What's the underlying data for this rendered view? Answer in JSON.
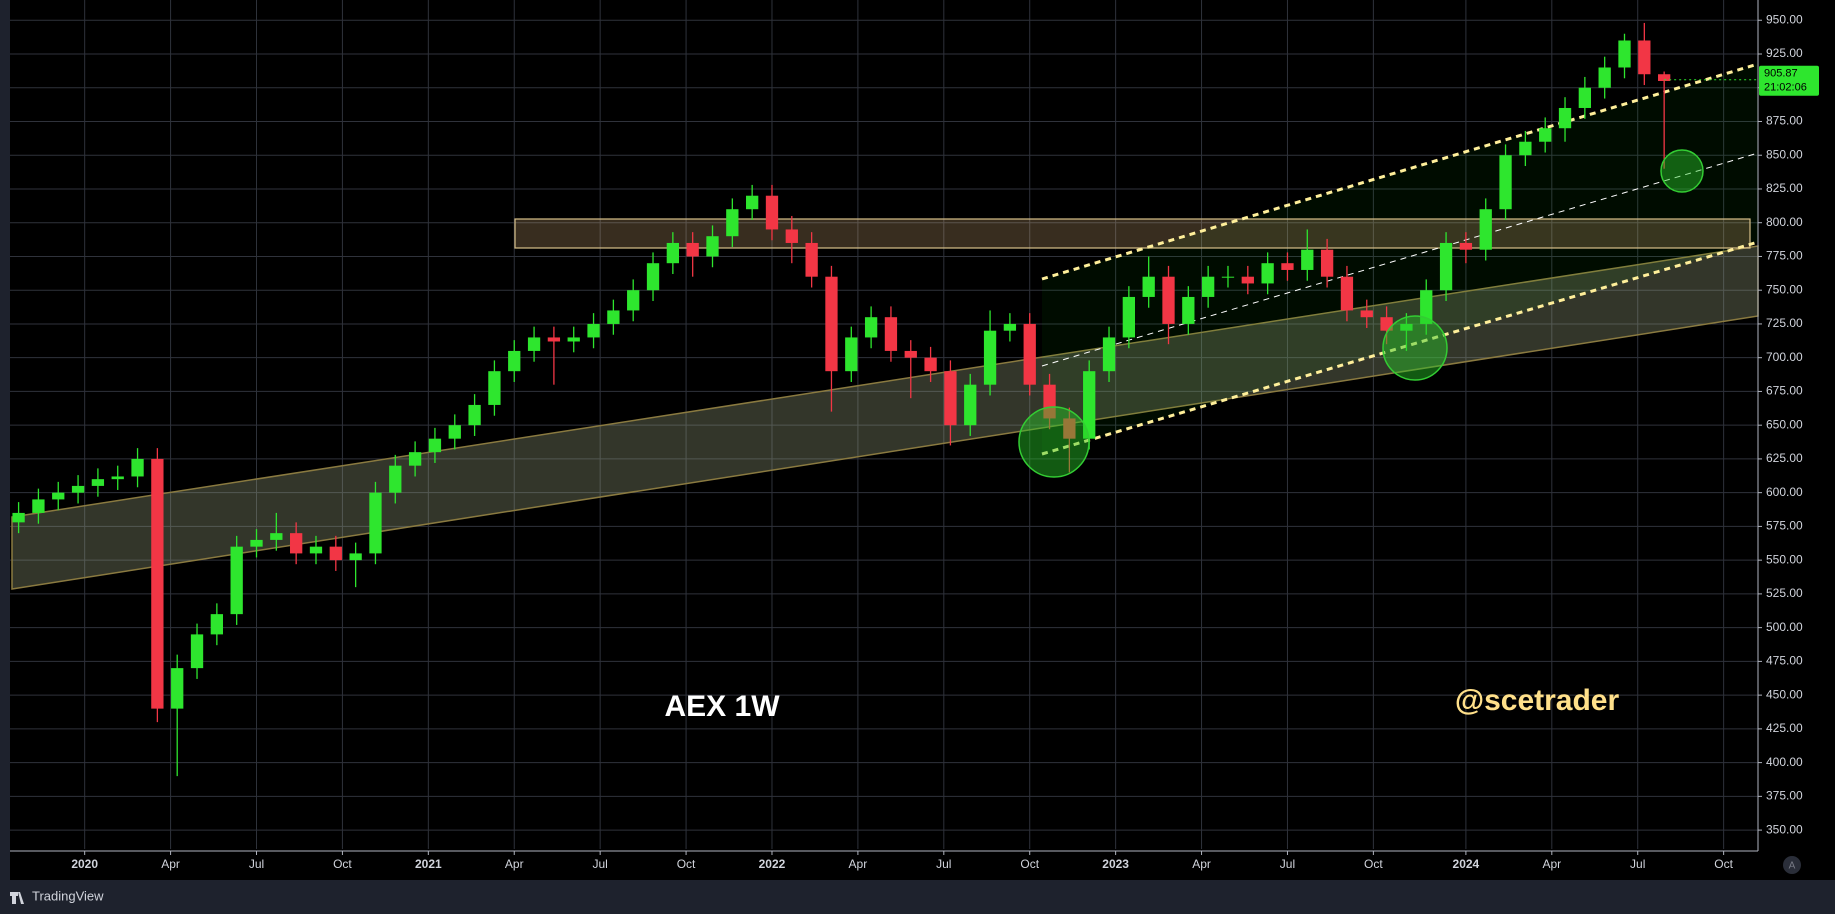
{
  "chart_data": {
    "type": "candlestick",
    "title": "AEX 1W",
    "watermark": "@scetrader",
    "x": [
      -10,
      -7,
      -4,
      -1,
      2,
      5,
      8,
      11,
      14,
      17,
      20,
      23,
      26,
      29,
      32,
      35,
      38,
      41,
      44,
      47,
      50,
      53,
      56,
      59,
      62,
      65,
      68,
      71,
      74,
      77,
      80,
      83,
      86,
      89,
      92,
      95,
      98,
      101,
      104,
      107,
      110,
      113,
      116,
      119,
      122,
      125,
      128,
      131,
      134,
      137,
      140,
      143,
      146,
      149,
      152,
      155,
      158,
      161,
      164,
      167,
      170,
      173,
      176,
      179,
      182,
      185,
      188,
      191,
      194,
      197,
      200,
      203,
      206,
      209,
      212,
      215,
      218,
      221,
      224,
      227,
      230,
      233,
      236,
      239
    ],
    "open": [
      578,
      585,
      595,
      600,
      605,
      610,
      612,
      625,
      440,
      470,
      495,
      510,
      560,
      565,
      570,
      555,
      560,
      550,
      555,
      600,
      620,
      630,
      640,
      650,
      665,
      690,
      705,
      715,
      712,
      715,
      725,
      735,
      750,
      770,
      785,
      775,
      790,
      810,
      820,
      795,
      785,
      760,
      690,
      715,
      730,
      705,
      700,
      690,
      650,
      680,
      720,
      725,
      680,
      655,
      640,
      690,
      715,
      745,
      760,
      725,
      745,
      760,
      760,
      755,
      770,
      765,
      780,
      760,
      735,
      730,
      720,
      725,
      750,
      785,
      780,
      810,
      850,
      860,
      870,
      885,
      900,
      915,
      935,
      910
    ],
    "high": [
      593,
      603,
      608,
      613,
      618,
      620,
      633,
      633,
      480,
      503,
      518,
      568,
      573,
      585,
      578,
      568,
      568,
      563,
      608,
      628,
      638,
      648,
      658,
      673,
      698,
      713,
      723,
      723,
      723,
      733,
      743,
      758,
      778,
      793,
      793,
      798,
      818,
      828,
      828,
      805,
      793,
      768,
      723,
      738,
      738,
      713,
      708,
      698,
      688,
      735,
      733,
      733,
      688,
      663,
      698,
      723,
      753,
      775,
      768,
      753,
      768,
      768,
      768,
      778,
      778,
      795,
      788,
      768,
      743,
      738,
      733,
      758,
      793,
      793,
      818,
      858,
      868,
      878,
      893,
      908,
      923,
      940,
      948,
      912
    ],
    "low": [
      570,
      577,
      587,
      592,
      597,
      602,
      604,
      430,
      390,
      462,
      487,
      502,
      552,
      557,
      547,
      547,
      542,
      530,
      547,
      592,
      612,
      622,
      632,
      642,
      657,
      682,
      697,
      680,
      704,
      707,
      717,
      727,
      742,
      762,
      760,
      767,
      782,
      802,
      787,
      770,
      752,
      660,
      682,
      707,
      697,
      670,
      682,
      635,
      642,
      672,
      712,
      672,
      647,
      615,
      632,
      682,
      707,
      737,
      710,
      717,
      737,
      752,
      747,
      747,
      757,
      757,
      752,
      727,
      722,
      710,
      705,
      717,
      742,
      770,
      772,
      802,
      842,
      852,
      860,
      877,
      892,
      907,
      902,
      840
    ],
    "close": [
      585,
      595,
      600,
      605,
      610,
      612,
      625,
      440,
      470,
      495,
      510,
      560,
      565,
      570,
      555,
      560,
      550,
      555,
      600,
      620,
      630,
      640,
      650,
      665,
      690,
      705,
      715,
      712,
      715,
      725,
      735,
      750,
      770,
      785,
      775,
      790,
      810,
      820,
      795,
      785,
      760,
      690,
      715,
      730,
      705,
      700,
      690,
      650,
      680,
      720,
      725,
      680,
      655,
      640,
      690,
      715,
      745,
      760,
      725,
      745,
      760,
      760,
      755,
      770,
      765,
      780,
      760,
      735,
      730,
      720,
      725,
      750,
      785,
      780,
      810,
      850,
      860,
      870,
      885,
      900,
      915,
      935,
      910,
      905
    ],
    "up_color": "#2ee62e",
    "down_color": "#f23645",
    "xlim": [
      -11.3,
      253.2
    ],
    "xticks": [
      {
        "value": 0,
        "label": "2020"
      },
      {
        "value": 13,
        "label": "Apr"
      },
      {
        "value": 26,
        "label": "Jul"
      },
      {
        "value": 39,
        "label": "Oct"
      },
      {
        "value": 52,
        "label": "2021"
      },
      {
        "value": 65,
        "label": "Apr"
      },
      {
        "value": 78,
        "label": "Jul"
      },
      {
        "value": 91,
        "label": "Oct"
      },
      {
        "value": 104,
        "label": "2022"
      },
      {
        "value": 117,
        "label": "Apr"
      },
      {
        "value": 130,
        "label": "Jul"
      },
      {
        "value": 143,
        "label": "Oct"
      },
      {
        "value": 156,
        "label": "2023"
      },
      {
        "value": 169,
        "label": "Apr"
      },
      {
        "value": 182,
        "label": "Jul"
      },
      {
        "value": 195,
        "label": "Oct"
      },
      {
        "value": 209,
        "label": "2024"
      },
      {
        "value": 222,
        "label": "Apr"
      },
      {
        "value": 235,
        "label": "Jul"
      },
      {
        "value": 248,
        "label": "Oct"
      }
    ],
    "ylim": [
      336,
      965
    ],
    "yticks": [
      {
        "value": 350,
        "label": "350.00"
      },
      {
        "value": 375,
        "label": "375.00"
      },
      {
        "value": 400,
        "label": "400.00"
      },
      {
        "value": 425,
        "label": "425.00"
      },
      {
        "value": 450,
        "label": "450.00"
      },
      {
        "value": 475,
        "label": "475.00"
      },
      {
        "value": 500,
        "label": "500.00"
      },
      {
        "value": 525,
        "label": "525.00"
      },
      {
        "value": 550,
        "label": "550.00"
      },
      {
        "value": 575,
        "label": "575.00"
      },
      {
        "value": 600,
        "label": "600.00"
      },
      {
        "value": 625,
        "label": "625.00"
      },
      {
        "value": 650,
        "label": "650.00"
      },
      {
        "value": 675,
        "label": "675.00"
      },
      {
        "value": 700,
        "label": "700.00"
      },
      {
        "value": 725,
        "label": "725.00"
      },
      {
        "value": 750,
        "label": "750.00"
      },
      {
        "value": 775,
        "label": "775.00"
      },
      {
        "value": 800,
        "label": "800.00"
      },
      {
        "value": 825,
        "label": "825.00"
      },
      {
        "value": 850,
        "label": "850.00"
      },
      {
        "value": 875,
        "label": "875.00"
      },
      {
        "value": 900,
        "label": "900.00"
      },
      {
        "value": 925,
        "label": "925.00"
      },
      {
        "value": 950,
        "label": "950.00"
      }
    ],
    "grid": true,
    "last_price": {
      "value": 905.87,
      "label": "905.87"
    },
    "countdown": "21:02:06"
  },
  "footer": {
    "brand": "TradingView"
  }
}
